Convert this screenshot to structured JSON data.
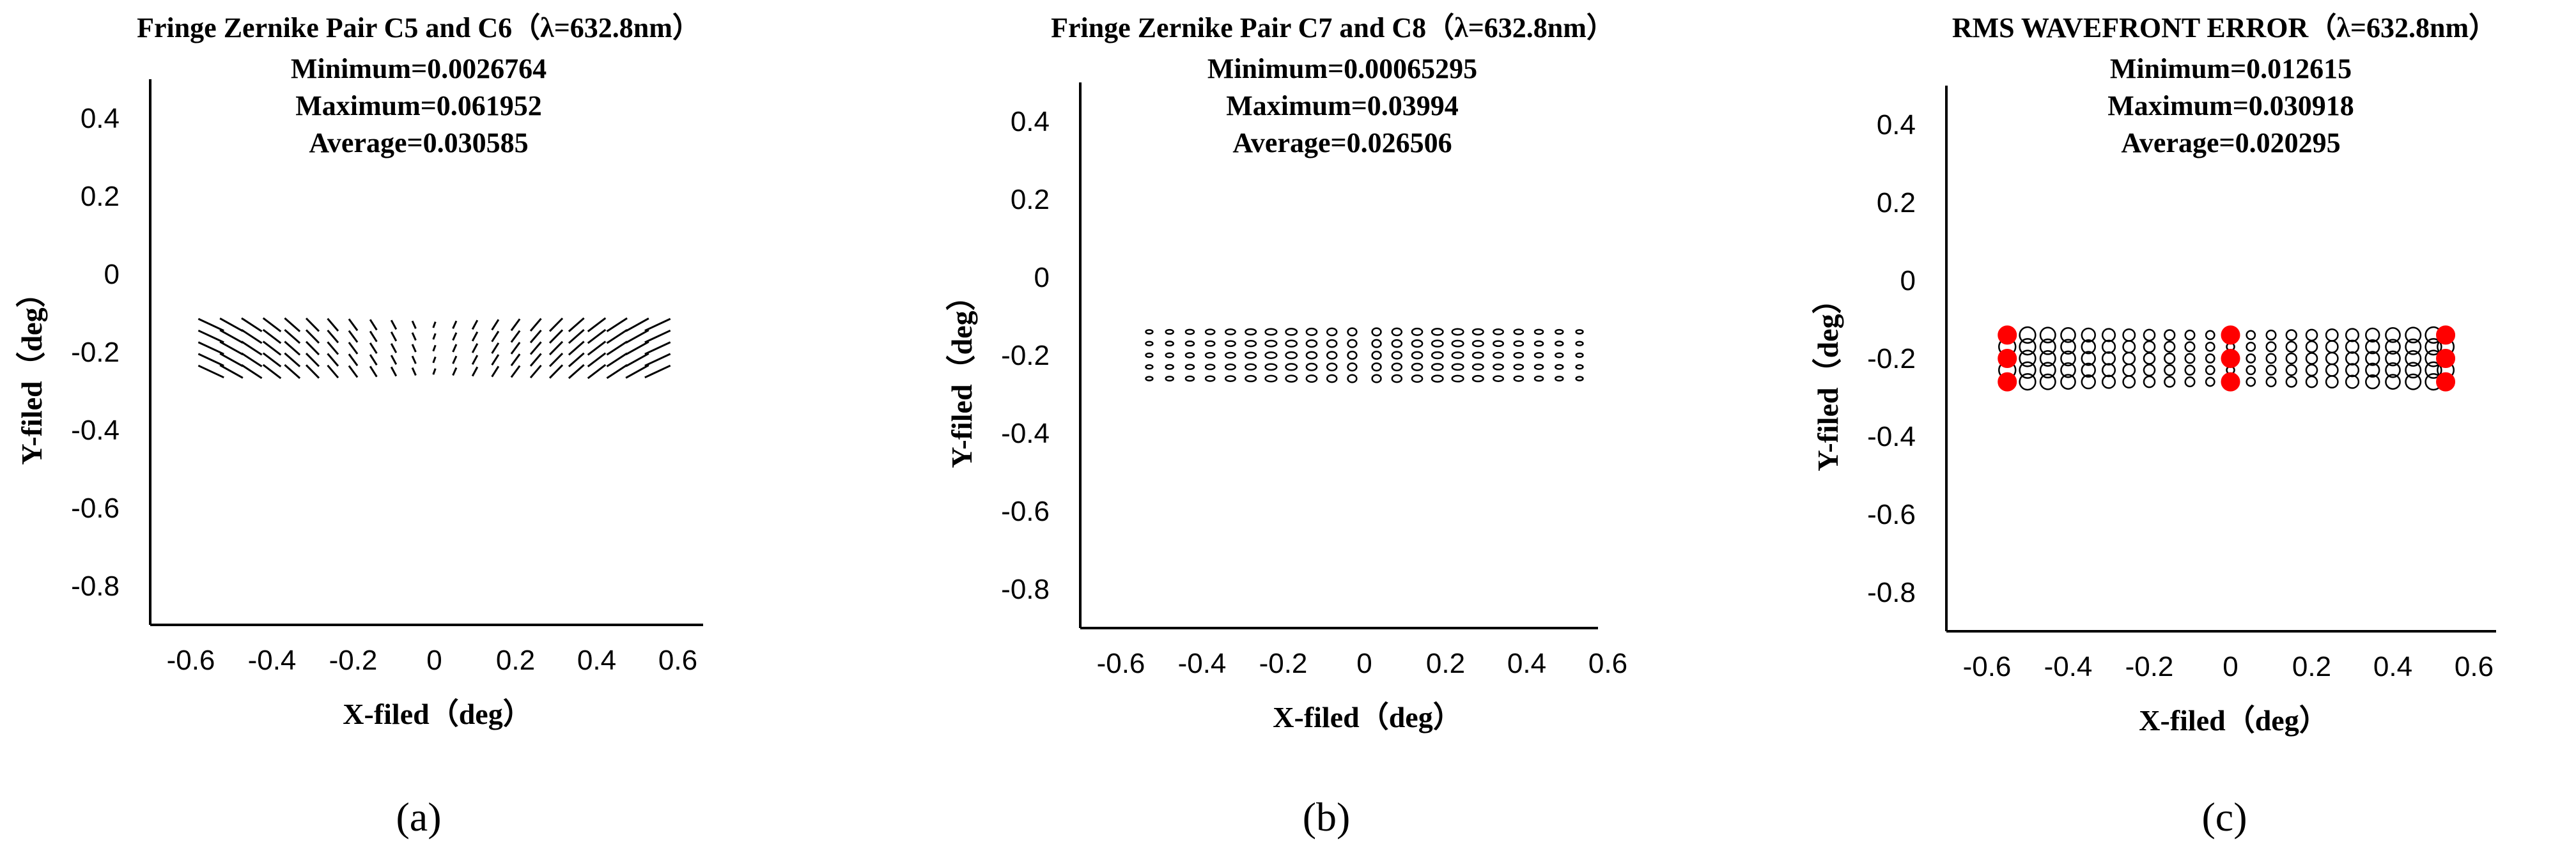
{
  "chart_data": [
    {
      "type": "scatter",
      "subtype": "field-vector-map",
      "title": "Fringe Zernike Pair C5 and C6（λ=632.8nm）",
      "stats": [
        "Minimum=0.0026764",
        "Maximum=0.061952",
        "Average=0.030585"
      ],
      "xlabel": "X-filed（deg）",
      "ylabel": "Y-filed（deg）",
      "xlim": [
        -0.7,
        0.7
      ],
      "ylim": [
        -0.9,
        0.5
      ],
      "xticks": [
        "-0.6",
        "-0.4",
        "-0.2",
        "0",
        "0.2",
        "0.4",
        "0.6"
      ],
      "yticks": [
        "0.4",
        "0.2",
        "0",
        "-0.2",
        "-0.4",
        "-0.6",
        "-0.8"
      ],
      "field_x": [
        -0.55,
        -0.5,
        -0.45,
        -0.4,
        -0.35,
        -0.3,
        -0.25,
        -0.2,
        -0.15,
        -0.1,
        -0.05,
        0,
        0.05,
        0.1,
        0.15,
        0.2,
        0.25,
        0.3,
        0.35,
        0.4,
        0.45,
        0.5,
        0.55
      ],
      "field_y": [
        -0.13,
        -0.16,
        -0.19,
        -0.22,
        -0.25
      ],
      "marker": "line-segment",
      "caption": "(a)"
    },
    {
      "type": "scatter",
      "subtype": "field-ellipse-map",
      "title": "Fringe Zernike Pair C7 and C8（λ=632.8nm）",
      "stats": [
        "Minimum=0.00065295",
        "Maximum=0.03994",
        "Average=0.026506"
      ],
      "xlabel": "X-filed（deg）",
      "ylabel": "Y-filed（deg）",
      "xlim": [
        -0.7,
        0.7
      ],
      "ylim": [
        -0.9,
        0.5
      ],
      "xticks": [
        "-0.6",
        "-0.4",
        "-0.2",
        "0",
        "0.2",
        "0.4",
        "0.6"
      ],
      "yticks": [
        "0.4",
        "0.2",
        "0",
        "-0.2",
        "-0.4",
        "-0.6",
        "-0.8"
      ],
      "field_x": [
        -0.53,
        -0.48,
        -0.43,
        -0.38,
        -0.33,
        -0.28,
        -0.23,
        -0.18,
        -0.13,
        -0.08,
        -0.03,
        0.03,
        0.08,
        0.13,
        0.18,
        0.23,
        0.28,
        0.33,
        0.38,
        0.43,
        0.48,
        0.53
      ],
      "field_y": [
        -0.14,
        -0.17,
        -0.2,
        -0.23,
        -0.26
      ],
      "marker": "small-ellipse",
      "caption": "(b)"
    },
    {
      "type": "scatter",
      "subtype": "rms-circle-map",
      "title": "RMS WAVEFRONT ERROR（λ=632.8nm）",
      "stats": [
        "Minimum=0.012615",
        "Maximum=0.030918",
        "Average=0.020295"
      ],
      "xlabel": "X-filed（deg）",
      "ylabel": "Y-filed（deg）",
      "xlim": [
        -0.7,
        0.7
      ],
      "ylim": [
        -0.9,
        0.5
      ],
      "xticks": [
        "-0.6",
        "-0.4",
        "-0.2",
        "0",
        "0.2",
        "0.4",
        "0.6"
      ],
      "yticks": [
        "0.4",
        "0.2",
        "0",
        "-0.2",
        "-0.4",
        "-0.6",
        "-0.8"
      ],
      "field_x": [
        -0.55,
        -0.5,
        -0.45,
        -0.4,
        -0.35,
        -0.3,
        -0.25,
        -0.2,
        -0.15,
        -0.1,
        -0.05,
        0,
        0.05,
        0.1,
        0.15,
        0.2,
        0.25,
        0.3,
        0.35,
        0.4,
        0.45,
        0.5,
        0.53
      ],
      "field_y": [
        -0.14,
        -0.17,
        -0.2,
        -0.23,
        -0.26
      ],
      "highlight_points": [
        {
          "x": -0.55,
          "y": -0.14
        },
        {
          "x": -0.55,
          "y": -0.2
        },
        {
          "x": -0.55,
          "y": -0.26
        },
        {
          "x": 0,
          "y": -0.14
        },
        {
          "x": 0,
          "y": -0.2
        },
        {
          "x": 0,
          "y": -0.26
        },
        {
          "x": 0.53,
          "y": -0.14
        },
        {
          "x": 0.53,
          "y": -0.2
        },
        {
          "x": 0.53,
          "y": -0.26
        }
      ],
      "highlight_color": "#ff0000",
      "marker": "open-circle",
      "caption": "(c)"
    }
  ]
}
